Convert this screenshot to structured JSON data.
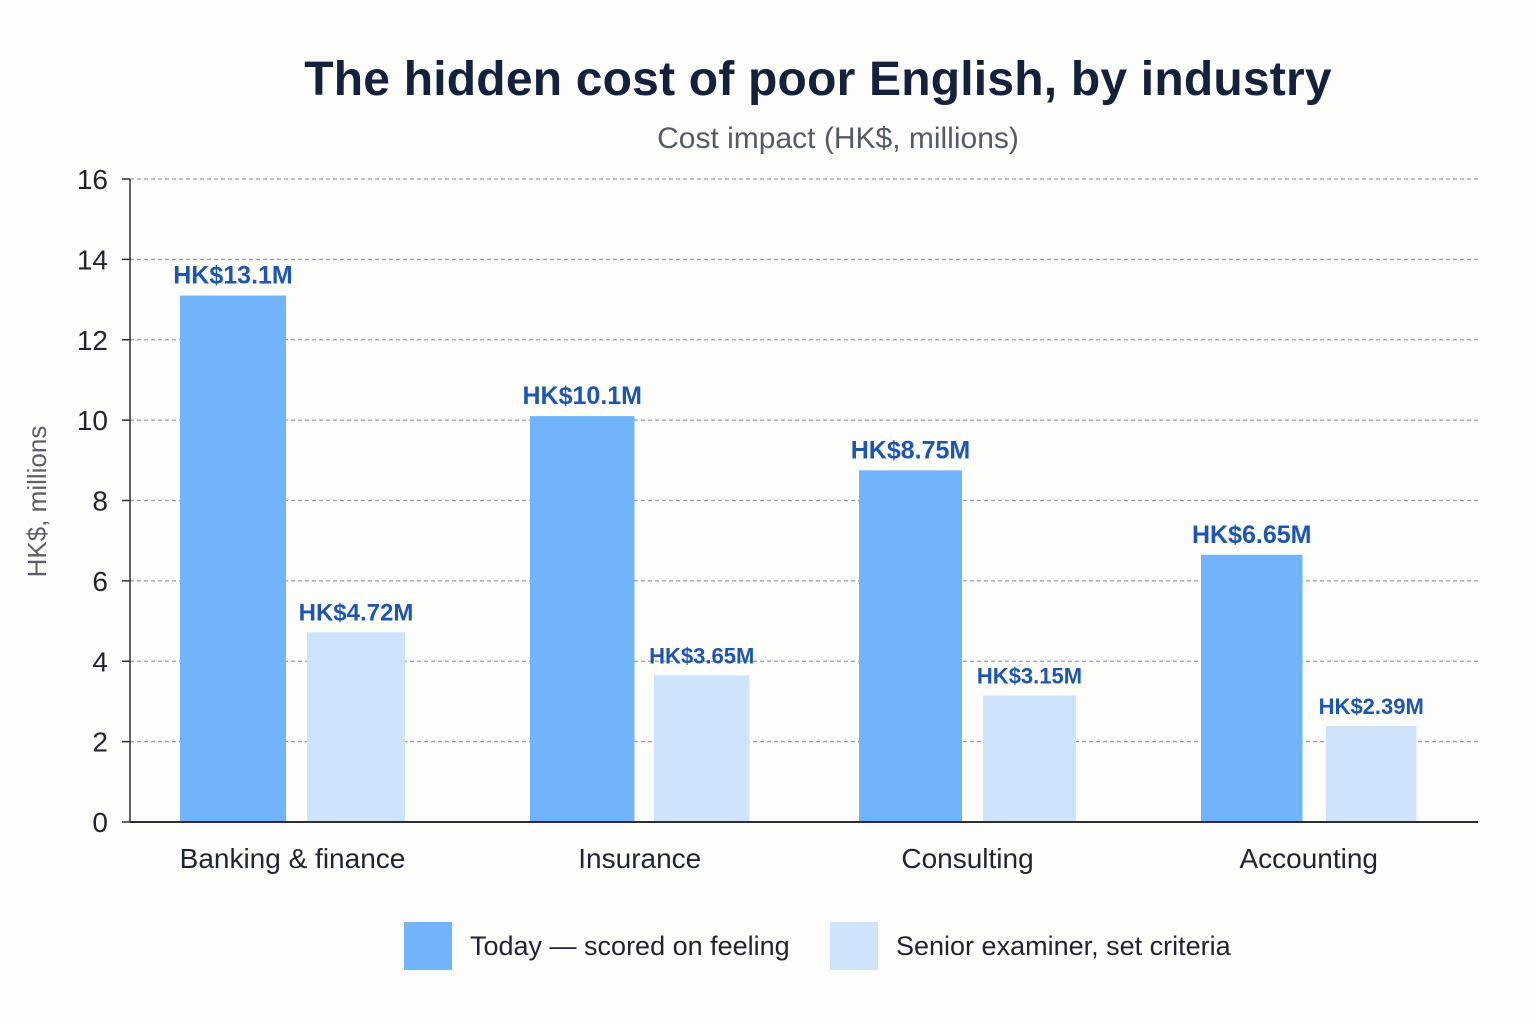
{
  "chart_data": {
    "type": "bar",
    "title": "The hidden cost of poor English, by industry",
    "subtitle": "Cost impact (HK$, millions)",
    "xlabel": "",
    "ylabel": "HK$, millions",
    "ylim": [
      0,
      16
    ],
    "yticks": [
      0,
      2,
      4,
      6,
      8,
      10,
      12,
      14,
      16
    ],
    "grid": true,
    "legend_position": "bottom",
    "categories": [
      "Banking & finance",
      "Insurance",
      "Consulting",
      "Accounting"
    ],
    "series": [
      {
        "name": "Today — scored on feeling",
        "color": "#72b4fb",
        "values": [
          13.1,
          10.1,
          8.75,
          6.65
        ],
        "labels": [
          "HK$13.1M",
          "HK$10.1M",
          "HK$8.75M",
          "HK$6.65M"
        ]
      },
      {
        "name": "Senior examiner, set criteria",
        "color": "#cfe3fd",
        "values": [
          4.72,
          3.65,
          3.15,
          2.39
        ],
        "labels": [
          "HK$4.72M",
          "HK$3.65M",
          "HK$3.15M",
          "HK$2.39M"
        ]
      }
    ],
    "label_color": "#1c55b3"
  }
}
